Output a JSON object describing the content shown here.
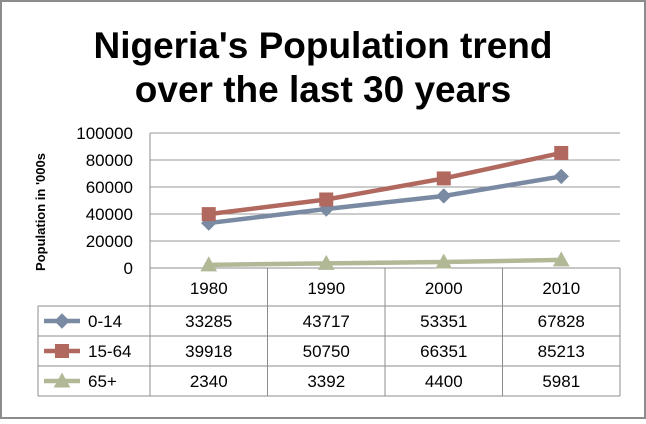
{
  "chart_data": {
    "type": "line",
    "title_lines": [
      "Nigeria's Population trend",
      "over the last 30 years"
    ],
    "xlabel": "",
    "ylabel": "Population in '000s",
    "categories": [
      "1980",
      "1990",
      "2000",
      "2010"
    ],
    "ylim": [
      0,
      100000
    ],
    "yticks": [
      0,
      20000,
      40000,
      60000,
      80000,
      100000
    ],
    "grid": true,
    "legend_placement": "data-table",
    "series": [
      {
        "name": "0-14",
        "values": [
          33285,
          43717,
          53351,
          67828
        ],
        "color": "#7a8aa3",
        "marker": "diamond"
      },
      {
        "name": "15-64",
        "values": [
          39918,
          50750,
          66351,
          85213
        ],
        "color": "#b0685f",
        "marker": "square"
      },
      {
        "name": "65+",
        "values": [
          2340,
          3392,
          4400,
          5981
        ],
        "color": "#b1b896",
        "marker": "triangle"
      }
    ]
  }
}
